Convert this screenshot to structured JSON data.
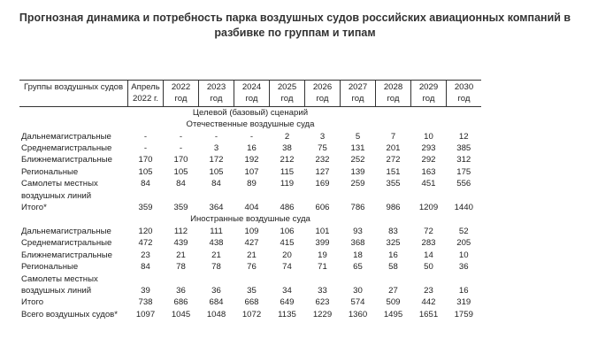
{
  "title": "Прогнозная динамика и потребность парка воздушных судов российских авиационных компаний в разбивке по группам и типам",
  "table": {
    "header": [
      "Группы воздушных судов",
      "Апрель 2022 г.",
      "2022 год",
      "2023 год",
      "2024 год",
      "2025 год",
      "2026 год",
      "2027 год",
      "2028 год",
      "2029 год",
      "2030 год"
    ],
    "scenario": "Целевой (базовый) сценарий",
    "sections": [
      {
        "title": "Отечественные воздушные суда",
        "rows": [
          {
            "label": "Дальнемагистральные",
            "values": [
              "-",
              "-",
              "-",
              "-",
              2,
              3,
              5,
              7,
              10,
              12
            ]
          },
          {
            "label": "Среднемагистральные",
            "values": [
              "-",
              "-",
              3,
              16,
              38,
              75,
              131,
              201,
              293,
              385
            ]
          },
          {
            "label": "Ближнемагистральные",
            "values": [
              170,
              170,
              172,
              192,
              212,
              232,
              252,
              272,
              292,
              312
            ]
          },
          {
            "label": "Региональные",
            "values": [
              105,
              105,
              105,
              107,
              115,
              127,
              139,
              151,
              163,
              175
            ]
          },
          {
            "label": "Самолеты местных воздушных линий",
            "values": [
              84,
              84,
              84,
              89,
              119,
              169,
              259,
              355,
              451,
              556
            ]
          },
          {
            "label": "Итого*",
            "values": [
              359,
              359,
              364,
              404,
              486,
              606,
              786,
              986,
              1209,
              1440
            ]
          }
        ]
      },
      {
        "title": "Иностранные воздушные суда",
        "rows": [
          {
            "label": "Дальнемагистральные",
            "values": [
              120,
              112,
              111,
              109,
              106,
              101,
              93,
              83,
              72,
              52
            ]
          },
          {
            "label": "Среднемагистральные",
            "values": [
              472,
              439,
              438,
              427,
              415,
              399,
              368,
              325,
              283,
              205
            ]
          },
          {
            "label": "Ближнемагистральные",
            "values": [
              23,
              21,
              21,
              21,
              20,
              19,
              18,
              16,
              14,
              10
            ]
          },
          {
            "label": "Региональные",
            "values": [
              84,
              78,
              78,
              76,
              74,
              71,
              65,
              58,
              50,
              36
            ]
          },
          {
            "label": "Самолеты местных воздушных линий",
            "values": [
              39,
              36,
              36,
              35,
              34,
              33,
              30,
              27,
              23,
              16
            ]
          },
          {
            "label": "Итого",
            "values": [
              738,
              686,
              684,
              668,
              649,
              623,
              574,
              509,
              442,
              319
            ]
          }
        ]
      }
    ],
    "grand_total": {
      "label": "Всего воздушных судов*",
      "values": [
        1097,
        1045,
        1048,
        1072,
        1135,
        1229,
        1360,
        1495,
        1651,
        1759
      ]
    }
  }
}
